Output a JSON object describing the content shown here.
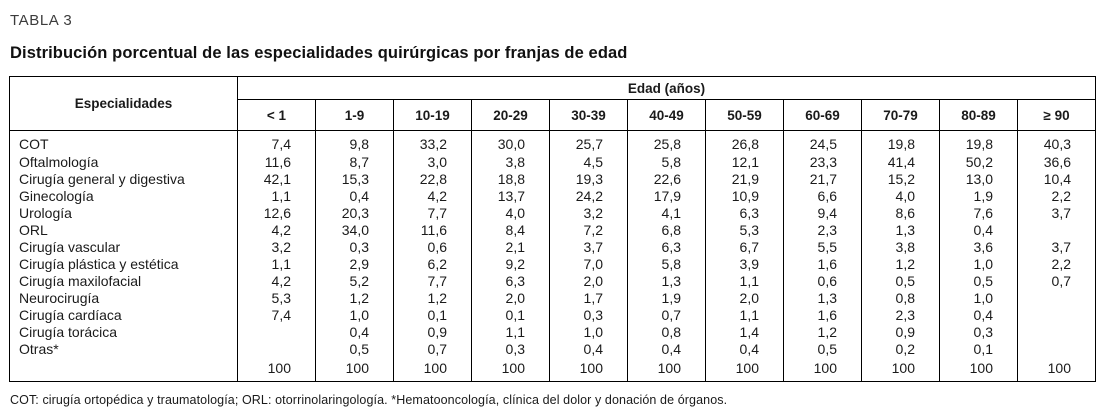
{
  "label": "TABLA 3",
  "title": "Distribución porcentual de las especialidades quirúrgicas por franjas de edad",
  "table": {
    "row_header": "Especialidades",
    "col_group_header": "Edad (años)",
    "age_columns": [
      "< 1",
      "1-9",
      "10-19",
      "20-29",
      "30-39",
      "40-49",
      "50-59",
      "60-69",
      "70-79",
      "80-89",
      "≥ 90"
    ],
    "rows": [
      {
        "name": "COT",
        "values": [
          "7,4",
          "9,8",
          "33,2",
          "30,0",
          "25,7",
          "25,8",
          "26,8",
          "24,5",
          "19,8",
          "19,8",
          "40,3"
        ]
      },
      {
        "name": "Oftalmología",
        "values": [
          "11,6",
          "8,7",
          "3,0",
          "3,8",
          "4,5",
          "5,8",
          "12,1",
          "23,3",
          "41,4",
          "50,2",
          "36,6"
        ]
      },
      {
        "name": "Cirugía general y digestiva",
        "values": [
          "42,1",
          "15,3",
          "22,8",
          "18,8",
          "19,3",
          "22,6",
          "21,9",
          "21,7",
          "15,2",
          "13,0",
          "10,4"
        ]
      },
      {
        "name": "Ginecología",
        "values": [
          "1,1",
          "0,4",
          "4,2",
          "13,7",
          "24,2",
          "17,9",
          "10,9",
          "6,6",
          "4,0",
          "1,9",
          "2,2"
        ]
      },
      {
        "name": "Urología",
        "values": [
          "12,6",
          "20,3",
          "7,7",
          "4,0",
          "3,2",
          "4,1",
          "6,3",
          "9,4",
          "8,6",
          "7,6",
          "3,7"
        ]
      },
      {
        "name": "ORL",
        "values": [
          "4,2",
          "34,0",
          "11,6",
          "8,4",
          "7,2",
          "6,8",
          "5,3",
          "2,3",
          "1,3",
          "0,4",
          ""
        ]
      },
      {
        "name": "Cirugía vascular",
        "values": [
          "3,2",
          "0,3",
          "0,6",
          "2,1",
          "3,7",
          "6,3",
          "6,7",
          "5,5",
          "3,8",
          "3,6",
          "3,7"
        ]
      },
      {
        "name": "Cirugía plástica y estética",
        "values": [
          "1,1",
          "2,9",
          "6,2",
          "9,2",
          "7,0",
          "5,8",
          "3,9",
          "1,6",
          "1,2",
          "1,0",
          "2,2"
        ]
      },
      {
        "name": "Cirugía maxilofacial",
        "values": [
          "4,2",
          "5,2",
          "7,7",
          "6,3",
          "2,0",
          "1,3",
          "1,1",
          "0,6",
          "0,5",
          "0,5",
          "0,7"
        ]
      },
      {
        "name": "Neurocirugía",
        "values": [
          "5,3",
          "1,2",
          "1,2",
          "2,0",
          "1,7",
          "1,9",
          "2,0",
          "1,3",
          "0,8",
          "1,0",
          ""
        ]
      },
      {
        "name": "Cirugía cardíaca",
        "values": [
          "7,4",
          "1,0",
          "0,1",
          "0,1",
          "0,3",
          "0,7",
          "1,1",
          "1,6",
          "2,3",
          "0,4",
          ""
        ]
      },
      {
        "name": "Cirugía torácica",
        "values": [
          "",
          "0,4",
          "0,9",
          "1,1",
          "1,0",
          "0,8",
          "1,4",
          "1,2",
          "0,9",
          "0,3",
          ""
        ]
      },
      {
        "name": "Otras*",
        "values": [
          "",
          "0,5",
          "0,7",
          "0,3",
          "0,4",
          "0,4",
          "0,4",
          "0,5",
          "0,2",
          "0,1",
          ""
        ]
      },
      {
        "name": "",
        "values": [
          "100",
          "100",
          "100",
          "100",
          "100",
          "100",
          "100",
          "100",
          "100",
          "100",
          "100"
        ]
      }
    ],
    "footnote": "COT: cirugía ortopédica y traumatología; ORL: otorrinolaringología. *Hematooncología, clínica del dolor y donación de órganos."
  }
}
